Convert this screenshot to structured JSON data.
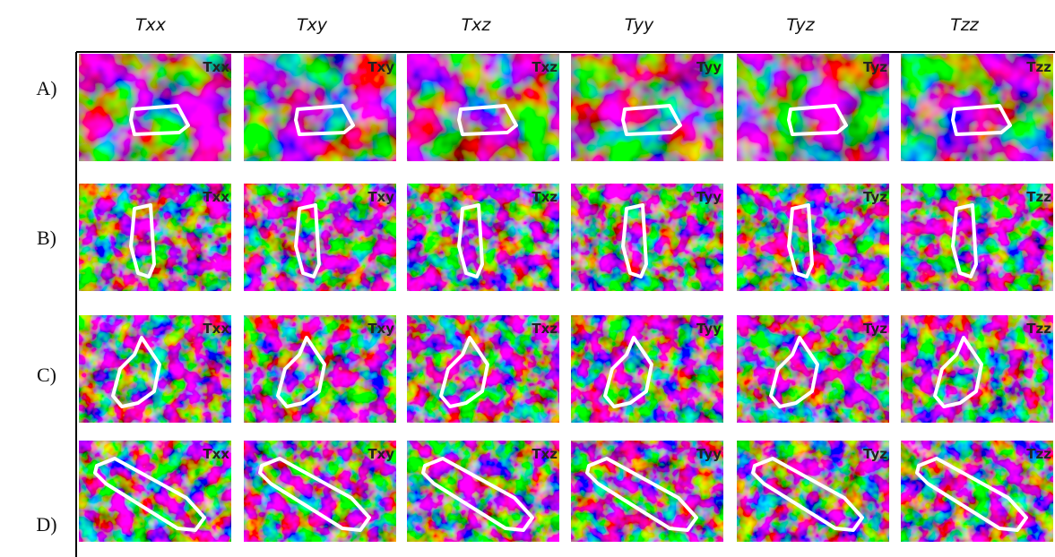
{
  "columns": [
    "Txx",
    "Txy",
    "Txz",
    "Tyy",
    "Tyz",
    "Tzz"
  ],
  "rows": [
    {
      "label": "A)",
      "cells": [
        "Txx",
        "Txy",
        "Txz",
        "Tyy",
        "Tyz",
        "Tzz"
      ]
    },
    {
      "label": "B)",
      "cells": [
        "Txx",
        "Txy",
        "Txz",
        "Tyy",
        "Tyz",
        "Tzz"
      ]
    },
    {
      "label": "C)",
      "cells": [
        "Txx",
        "Txy",
        "Txz",
        "Tyy",
        "Tyz",
        "Tzz"
      ]
    },
    {
      "label": "D)",
      "cells": [
        "Txx",
        "Txy",
        "Txz",
        "Tyy",
        "Tyz",
        "Tzz"
      ]
    }
  ]
}
